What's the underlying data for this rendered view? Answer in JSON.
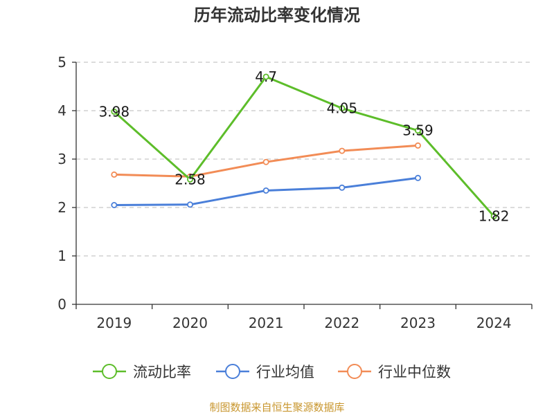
{
  "chart_data": {
    "type": "line",
    "title": "历年流动比率变化情况",
    "categories": [
      "2019",
      "2020",
      "2021",
      "2022",
      "2023",
      "2024"
    ],
    "ylim": [
      0,
      5
    ],
    "yticks": [
      0,
      1,
      2,
      3,
      4,
      5
    ],
    "grid": true,
    "legend_position": "bottom",
    "series": [
      {
        "name": "流动比率",
        "color": "#5dbd2a",
        "values": [
          3.98,
          2.58,
          4.7,
          4.05,
          3.59,
          1.82
        ],
        "labels": [
          "3.98",
          "2.58",
          "4.7",
          "4.05",
          "3.59",
          "1.82"
        ]
      },
      {
        "name": "行业均值",
        "color": "#4a7fd9",
        "values": [
          2.05,
          2.06,
          2.35,
          2.41,
          2.61,
          null
        ]
      },
      {
        "name": "行业中位数",
        "color": "#f28c56",
        "values": [
          2.68,
          2.64,
          2.94,
          3.17,
          3.28,
          null
        ]
      }
    ]
  },
  "source": "制图数据来自恒生聚源数据库"
}
